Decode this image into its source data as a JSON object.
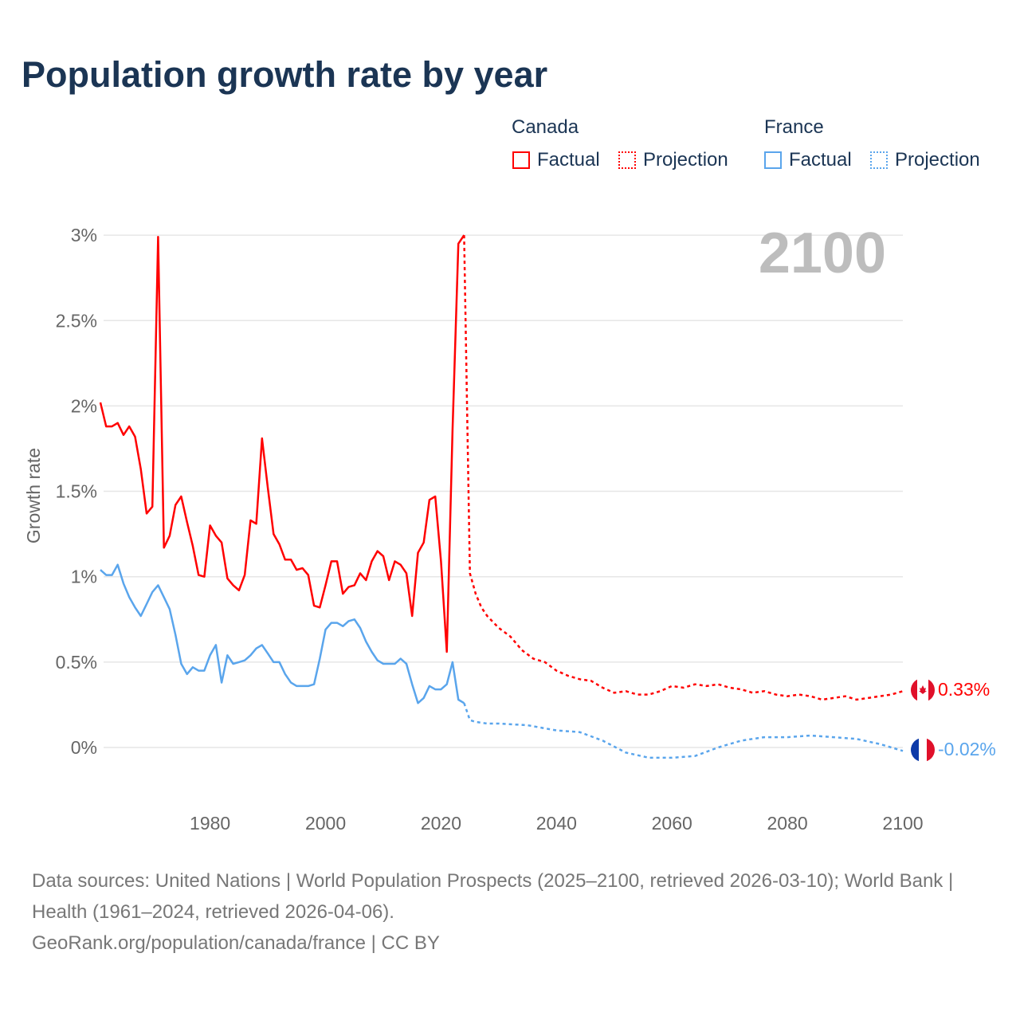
{
  "title": "Population growth rate by year",
  "legend": {
    "groups": [
      {
        "name": "Canada",
        "factual": "Factual",
        "projection": "Projection",
        "color": "#ff0000"
      },
      {
        "name": "France",
        "factual": "Factual",
        "projection": "Projection",
        "color": "#5aa5ec"
      }
    ]
  },
  "year_label": "2100",
  "footer": {
    "sources": "Data sources: United Nations | World Population Prospects (2025–2100, retrieved 2026-03-10); World Bank | Health (1961–2024, retrieved 2026-04-06).",
    "credit": "GeoRank.org/population/canada/france | CC BY"
  },
  "chart_data": {
    "type": "line",
    "title": "Population growth rate by year",
    "xlabel": "",
    "ylabel": "Growth rate",
    "xlim": [
      1961,
      2100
    ],
    "ylim": [
      -0.3,
      3.05
    ],
    "xticks": [
      1980,
      2000,
      2020,
      2040,
      2060,
      2080,
      2100
    ],
    "yticks": [
      0,
      0.5,
      1,
      1.5,
      2,
      2.5,
      3
    ],
    "ytick_labels": [
      "0%",
      "0.5%",
      "1%",
      "1.5%",
      "2%",
      "2.5%",
      "3%"
    ],
    "grid": true,
    "legend_position": "top-right",
    "series": [
      {
        "name": "Canada Factual",
        "color": "#ff0000",
        "style": "solid",
        "x_start": 1961,
        "values": [
          2.02,
          1.88,
          1.88,
          1.9,
          1.83,
          1.88,
          1.82,
          1.63,
          1.37,
          1.41,
          2.99,
          1.17,
          1.24,
          1.42,
          1.47,
          1.32,
          1.18,
          1.01,
          1.0,
          1.3,
          1.24,
          1.2,
          0.99,
          0.95,
          0.92,
          1.01,
          1.33,
          1.31,
          1.81,
          1.52,
          1.25,
          1.19,
          1.1,
          1.1,
          1.04,
          1.05,
          1.01,
          0.83,
          0.82,
          0.95,
          1.09,
          1.09,
          0.9,
          0.94,
          0.95,
          1.02,
          0.98,
          1.09,
          1.15,
          1.12,
          0.98,
          1.09,
          1.07,
          1.02,
          0.77,
          1.14,
          1.2,
          1.45,
          1.47,
          1.09,
          0.56,
          1.86,
          2.95,
          3.0
        ]
      },
      {
        "name": "Canada Projection",
        "color": "#ff0000",
        "style": "dotted",
        "x": [
          2024,
          2025,
          2026,
          2027,
          2028,
          2030,
          2032,
          2034,
          2036,
          2038,
          2040,
          2042,
          2044,
          2046,
          2048,
          2050,
          2052,
          2054,
          2056,
          2058,
          2060,
          2062,
          2064,
          2066,
          2068,
          2070,
          2072,
          2074,
          2076,
          2078,
          2080,
          2082,
          2084,
          2086,
          2088,
          2090,
          2092,
          2094,
          2096,
          2098,
          2100
        ],
        "values": [
          3.0,
          1.02,
          0.9,
          0.82,
          0.77,
          0.7,
          0.65,
          0.57,
          0.52,
          0.5,
          0.45,
          0.42,
          0.4,
          0.39,
          0.35,
          0.32,
          0.33,
          0.31,
          0.31,
          0.33,
          0.36,
          0.35,
          0.37,
          0.36,
          0.37,
          0.35,
          0.34,
          0.32,
          0.33,
          0.31,
          0.3,
          0.31,
          0.3,
          0.28,
          0.29,
          0.3,
          0.28,
          0.29,
          0.3,
          0.31,
          0.33
        ]
      },
      {
        "name": "France Factual",
        "color": "#5aa5ec",
        "style": "solid",
        "x_start": 1961,
        "values": [
          1.04,
          1.01,
          1.01,
          1.07,
          0.96,
          0.88,
          0.82,
          0.77,
          0.84,
          0.91,
          0.95,
          0.88,
          0.81,
          0.66,
          0.49,
          0.43,
          0.47,
          0.45,
          0.45,
          0.54,
          0.6,
          0.38,
          0.54,
          0.49,
          0.5,
          0.51,
          0.54,
          0.58,
          0.6,
          0.55,
          0.5,
          0.5,
          0.43,
          0.38,
          0.36,
          0.36,
          0.36,
          0.37,
          0.52,
          0.69,
          0.73,
          0.73,
          0.71,
          0.74,
          0.75,
          0.7,
          0.62,
          0.56,
          0.51,
          0.49,
          0.49,
          0.49,
          0.52,
          0.49,
          0.37,
          0.26,
          0.29,
          0.36,
          0.34,
          0.34,
          0.37,
          0.5,
          0.28,
          0.26
        ]
      },
      {
        "name": "France Projection",
        "color": "#5aa5ec",
        "style": "dotted",
        "x": [
          2024,
          2025,
          2026,
          2028,
          2030,
          2035,
          2040,
          2044,
          2048,
          2052,
          2056,
          2060,
          2064,
          2068,
          2072,
          2076,
          2080,
          2084,
          2088,
          2092,
          2096,
          2100
        ],
        "values": [
          0.26,
          0.16,
          0.15,
          0.14,
          0.14,
          0.13,
          0.1,
          0.09,
          0.04,
          -0.03,
          -0.06,
          -0.06,
          -0.05,
          0.0,
          0.04,
          0.06,
          0.06,
          0.07,
          0.06,
          0.05,
          0.02,
          -0.02
        ]
      }
    ],
    "end_labels": [
      {
        "country": "Canada",
        "text": "0.33%",
        "color": "#ff0000"
      },
      {
        "country": "France",
        "text": "-0.02%",
        "color": "#5aa5ec"
      }
    ]
  }
}
